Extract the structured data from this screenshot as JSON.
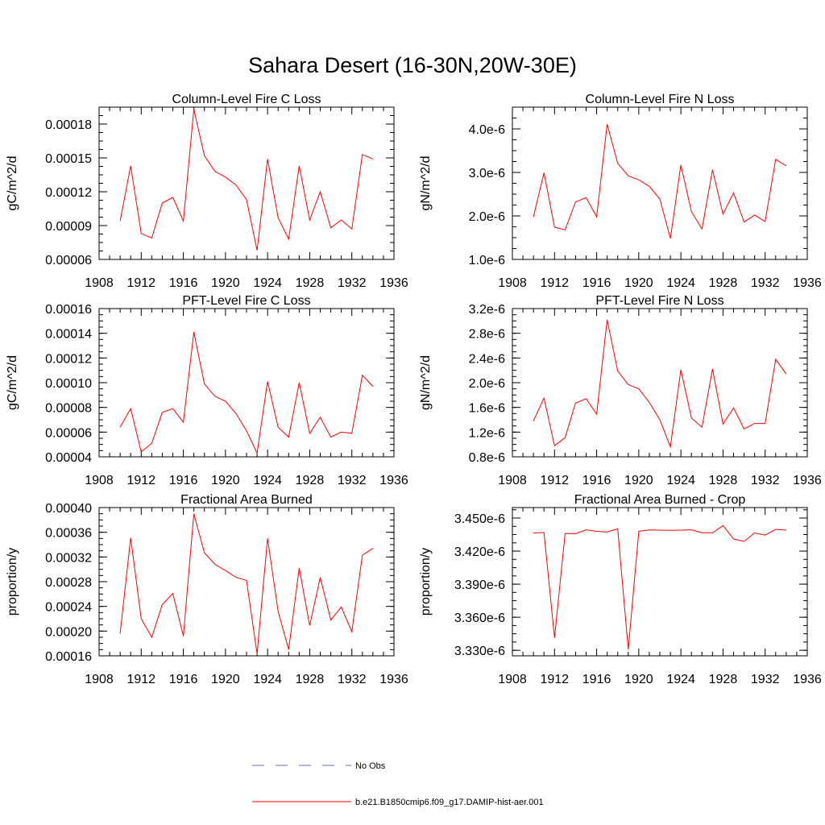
{
  "figure": {
    "title": "Sahara Desert (16-30N,20W-30E)"
  },
  "legend": {
    "items": [
      {
        "label": "No Obs",
        "color": "#6670b8",
        "style": "dashed"
      },
      {
        "label": "b.e21.B1850cmip6.f09_g17.DAMIP-hist-aer.001",
        "color": "#ff0000",
        "style": "solid"
      }
    ]
  },
  "chart_data": [
    {
      "type": "line",
      "title": "Column-Level Fire C Loss",
      "ylabel": "gC/m^2/d",
      "xlim": [
        1908,
        1936
      ],
      "xticks": [
        "1908",
        "1912",
        "1916",
        "1920",
        "1924",
        "1928",
        "1932",
        "1936"
      ],
      "ylim": [
        6e-05,
        0.000195
      ],
      "yticks": [
        "0.00006",
        "0.00009",
        "0.00012",
        "0.00015",
        "0.00018"
      ],
      "ytick_values": [
        6e-05,
        9e-05,
        0.00012,
        0.00015,
        0.00018
      ],
      "color": "#ff0000",
      "x": [
        1910,
        1911,
        1912,
        1913,
        1914,
        1915,
        1916,
        1917,
        1918,
        1919,
        1920,
        1921,
        1922,
        1923,
        1924,
        1925,
        1926,
        1927,
        1928,
        1929,
        1930,
        1931,
        1932,
        1933,
        1934
      ],
      "values": [
        9.4e-05,
        0.000143,
        8.3e-05,
        7.9e-05,
        0.00011,
        0.000115,
        9.4e-05,
        0.000193,
        0.000152,
        0.000138,
        0.000133,
        0.000126,
        0.000113,
        6.8e-05,
        0.000149,
        9.7e-05,
        7.8e-05,
        0.000143,
        9.5e-05,
        0.00012,
        8.8e-05,
        9.5e-05,
        8.7e-05,
        0.000153,
        0.000149
      ]
    },
    {
      "type": "line",
      "title": "Column-Level Fire N Loss",
      "ylabel": "gN/m^2/d",
      "xlim": [
        1908,
        1936
      ],
      "xticks": [
        "1908",
        "1912",
        "1916",
        "1920",
        "1924",
        "1928",
        "1932",
        "1936"
      ],
      "ylim": [
        1e-06,
        4.5e-06
      ],
      "yticks": [
        "1.0e-6",
        "2.0e-6",
        "3.0e-6",
        "4.0e-6"
      ],
      "ytick_values": [
        1e-06,
        2e-06,
        3e-06,
        4e-06
      ],
      "color": "#ff0000",
      "x": [
        1910,
        1911,
        1912,
        1913,
        1914,
        1915,
        1916,
        1917,
        1918,
        1919,
        1920,
        1921,
        1922,
        1923,
        1924,
        1925,
        1926,
        1927,
        1928,
        1929,
        1930,
        1931,
        1932,
        1933,
        1934
      ],
      "values": [
        1.98e-06,
        2.99e-06,
        1.74e-06,
        1.68e-06,
        2.32e-06,
        2.42e-06,
        1.98e-06,
        4.11e-06,
        3.21e-06,
        2.92e-06,
        2.83e-06,
        2.68e-06,
        2.39e-06,
        1.48e-06,
        3.17e-06,
        2.1e-06,
        1.7e-06,
        3.06e-06,
        2.04e-06,
        2.53e-06,
        1.86e-06,
        2.02e-06,
        1.87e-06,
        3.3e-06,
        3.15e-06
      ]
    },
    {
      "type": "line",
      "title": "PFT-Level Fire C Loss",
      "ylabel": "gC/m^2/d",
      "xlim": [
        1908,
        1936
      ],
      "xticks": [
        "1908",
        "1912",
        "1916",
        "1920",
        "1924",
        "1928",
        "1932",
        "1936"
      ],
      "ylim": [
        4e-05,
        0.00016
      ],
      "yticks": [
        "0.00004",
        "0.00006",
        "0.00008",
        "0.00010",
        "0.00012",
        "0.00014",
        "0.00016"
      ],
      "ytick_values": [
        4e-05,
        6e-05,
        8e-05,
        0.0001,
        0.00012,
        0.00014,
        0.00016
      ],
      "color": "#ff0000",
      "x": [
        1910,
        1911,
        1912,
        1913,
        1914,
        1915,
        1916,
        1917,
        1918,
        1919,
        1920,
        1921,
        1922,
        1923,
        1924,
        1925,
        1926,
        1927,
        1928,
        1929,
        1930,
        1931,
        1932,
        1933,
        1934
      ],
      "values": [
        6.4e-05,
        7.9e-05,
        4.4e-05,
        5.1e-05,
        7.6e-05,
        7.9e-05,
        6.8e-05,
        0.000141,
        9.9e-05,
        8.9e-05,
        8.5e-05,
        7.5e-05,
        6.1e-05,
        4.3e-05,
        0.000101,
        6.4e-05,
        5.6e-05,
        0.0001,
        5.9e-05,
        7.2e-05,
        5.6e-05,
        6e-05,
        5.9e-05,
        0.000106,
        9.7e-05
      ]
    },
    {
      "type": "line",
      "title": "PFT-Level Fire N Loss",
      "ylabel": "gN/m^2/d",
      "xlim": [
        1908,
        1936
      ],
      "xticks": [
        "1908",
        "1912",
        "1916",
        "1920",
        "1924",
        "1928",
        "1932",
        "1936"
      ],
      "ylim": [
        8e-07,
        3.2e-06
      ],
      "yticks": [
        "0.8e-6",
        "1.2e-6",
        "1.6e-6",
        "2.0e-6",
        "2.4e-6",
        "2.8e-6",
        "3.2e-6"
      ],
      "ytick_values": [
        8e-07,
        1.2e-06,
        1.6e-06,
        2e-06,
        2.4e-06,
        2.8e-06,
        3.2e-06
      ],
      "color": "#ff0000",
      "x": [
        1910,
        1911,
        1912,
        1913,
        1914,
        1915,
        1916,
        1917,
        1918,
        1919,
        1920,
        1921,
        1922,
        1923,
        1924,
        1925,
        1926,
        1927,
        1928,
        1929,
        1930,
        1931,
        1932,
        1933,
        1934
      ],
      "values": [
        1.38e-06,
        1.75e-06,
        9.8e-07,
        1.11e-06,
        1.67e-06,
        1.74e-06,
        1.49e-06,
        3.02e-06,
        2.19e-06,
        1.97e-06,
        1.9e-06,
        1.68e-06,
        1.4e-06,
        9.6e-07,
        2.21e-06,
        1.43e-06,
        1.28e-06,
        2.22e-06,
        1.33e-06,
        1.59e-06,
        1.25e-06,
        1.34e-06,
        1.34e-06,
        2.38e-06,
        2.14e-06
      ]
    },
    {
      "type": "line",
      "title": "Fractional Area Burned",
      "ylabel": "proportion/y",
      "xlim": [
        1908,
        1936
      ],
      "xticks": [
        "1908",
        "1912",
        "1916",
        "1920",
        "1924",
        "1928",
        "1932",
        "1936"
      ],
      "ylim": [
        0.00016,
        0.0004
      ],
      "yticks": [
        "0.00016",
        "0.00020",
        "0.00024",
        "0.00028",
        "0.00032",
        "0.00036",
        "0.00040"
      ],
      "ytick_values": [
        0.00016,
        0.0002,
        0.00024,
        0.00028,
        0.00032,
        0.00036,
        0.0004
      ],
      "color": "#ff0000",
      "x": [
        1910,
        1911,
        1912,
        1913,
        1914,
        1915,
        1916,
        1917,
        1918,
        1919,
        1920,
        1921,
        1922,
        1923,
        1924,
        1925,
        1926,
        1927,
        1928,
        1929,
        1930,
        1931,
        1932,
        1933,
        1934
      ],
      "values": [
        0.000196,
        0.000351,
        0.00022,
        0.00019,
        0.000243,
        0.000261,
        0.000192,
        0.00039,
        0.000327,
        0.000308,
        0.000298,
        0.000287,
        0.000282,
        0.000163,
        0.00035,
        0.000232,
        0.00017,
        0.000302,
        0.000209,
        0.000287,
        0.000218,
        0.000239,
        0.000199,
        0.000323,
        0.000334
      ]
    },
    {
      "type": "line",
      "title": "Fractional Area Burned - Crop",
      "ylabel": "proportion/y",
      "xlim": [
        1908,
        1936
      ],
      "xticks": [
        "1908",
        "1912",
        "1916",
        "1920",
        "1924",
        "1928",
        "1932",
        "1936"
      ],
      "ylim": [
        3.325e-06,
        3.4595e-06
      ],
      "yticks": [
        "3.330e-6",
        "3.360e-6",
        "3.390e-6",
        "3.420e-6",
        "3.450e-6"
      ],
      "ytick_values": [
        3.33e-06,
        3.36e-06,
        3.39e-06,
        3.42e-06,
        3.45e-06
      ],
      "color": "#ff0000",
      "x": [
        1910,
        1911,
        1912,
        1913,
        1914,
        1915,
        1916,
        1917,
        1918,
        1919,
        1920,
        1921,
        1922,
        1923,
        1924,
        1925,
        1926,
        1927,
        1928,
        1929,
        1930,
        1931,
        1932,
        1933,
        1934
      ],
      "values": [
        3.4365e-06,
        3.4369e-06,
        3.3413e-06,
        3.436e-06,
        3.4358e-06,
        3.4393e-06,
        3.4379e-06,
        3.4373e-06,
        3.4403e-06,
        3.3307e-06,
        3.4379e-06,
        3.4392e-06,
        3.439e-06,
        3.4388e-06,
        3.439e-06,
        3.4393e-06,
        3.4367e-06,
        3.4366e-06,
        3.4432e-06,
        3.431e-06,
        3.4288e-06,
        3.4365e-06,
        3.4345e-06,
        3.4398e-06,
        3.439e-06
      ]
    }
  ]
}
